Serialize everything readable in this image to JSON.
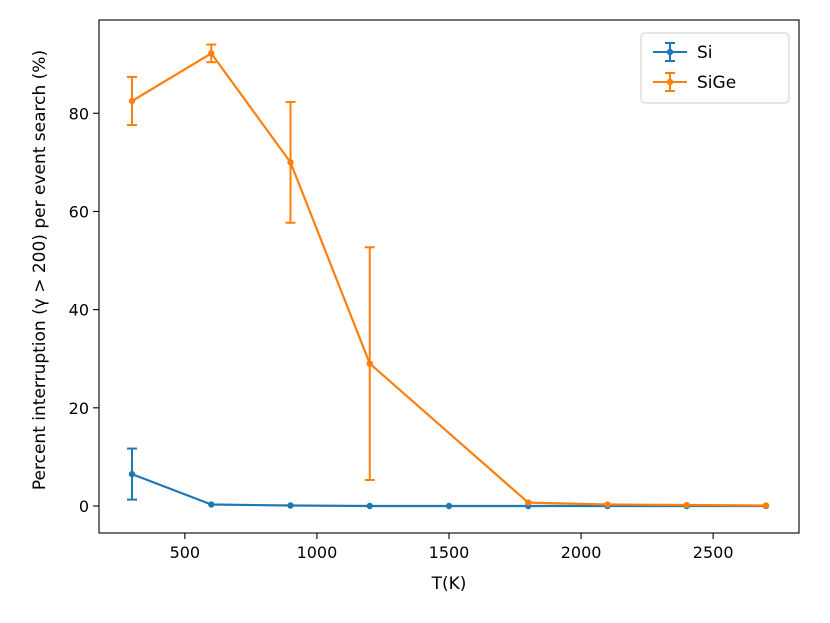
{
  "chart_data": {
    "type": "line",
    "xlabel": "T(K)",
    "ylabel": "Percent interruption (γ > 200) per event search (%)",
    "xlim": [
      175,
      2825
    ],
    "ylim": [
      -5.5,
      99
    ],
    "xticks": [
      500,
      1000,
      1500,
      2000,
      2500
    ],
    "yticks": [
      0,
      20,
      40,
      60,
      80
    ],
    "legend_position": "top-right",
    "grid": false,
    "series": [
      {
        "name": "Si",
        "color": "#1f77b4",
        "x": [
          300,
          600,
          900,
          1200,
          1500,
          1800,
          2100,
          2400,
          2700
        ],
        "y": [
          6.5,
          0.3,
          0.1,
          0.0,
          0.0,
          0.0,
          0.0,
          0.0,
          0.0
        ],
        "yerr": [
          5.2,
          0.3,
          0.1,
          0.0,
          0.0,
          0.0,
          0.0,
          0.0,
          0.0
        ]
      },
      {
        "name": "SiGe",
        "color": "#ff7f0e",
        "x": [
          300,
          600,
          900,
          1200,
          1500,
          1800,
          2100,
          2400,
          2700
        ],
        "y": [
          82.5,
          92.2,
          70.0,
          29.0,
          null,
          0.7,
          0.3,
          0.2,
          0.1
        ],
        "yerr": [
          4.9,
          1.8,
          12.3,
          23.7,
          null,
          0.3,
          0.1,
          0.1,
          0.1
        ]
      }
    ]
  }
}
